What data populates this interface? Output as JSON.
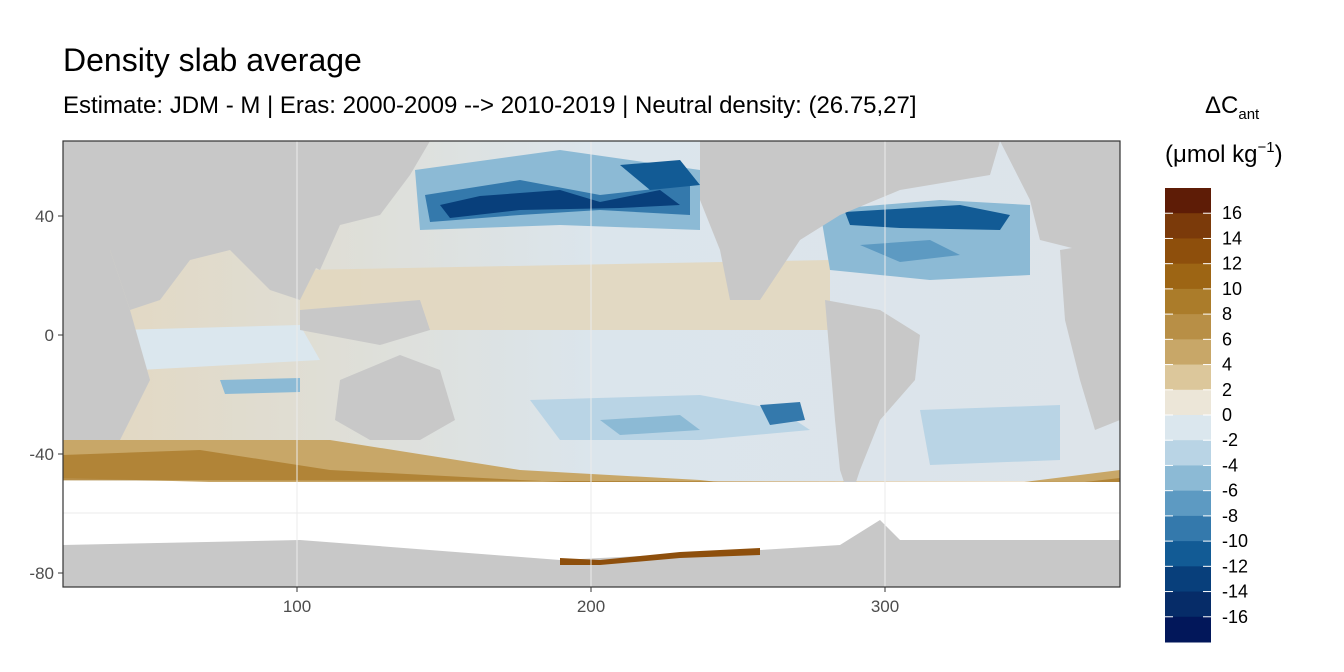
{
  "title": "Density slab average",
  "subtitle": "Estimate: JDM - M | Eras: 2000-2009 --> 2010-2019 | Neutral density: (26.75,27]",
  "axes": {
    "y_ticks": [
      "40",
      "0",
      "-40",
      "-80"
    ],
    "x_ticks": [
      "100",
      "200",
      "300"
    ],
    "x_range": [
      20,
      380
    ],
    "y_range": [
      -85,
      65
    ]
  },
  "colorbar": {
    "title_main": "ΔC",
    "title_sub": "ant",
    "title_units_a": "(μmol kg",
    "title_units_sup": "−1",
    "title_units_b": ")",
    "labels": [
      "16",
      "14",
      "12",
      "10",
      "8",
      "6",
      "4",
      "2",
      "0",
      "-2",
      "-4",
      "-6",
      "-8",
      "-10",
      "-12",
      "-14",
      "-16"
    ],
    "colors": [
      "#5e1c06",
      "#7b3a0a",
      "#8e4f0c",
      "#9d6514",
      "#ab7c2a",
      "#b88f46",
      "#c8a768",
      "#dcc79b",
      "#ece6d8",
      "#dbe7ee",
      "#b9d4e5",
      "#8cbad5",
      "#5d9ac2",
      "#3479ac",
      "#125b95",
      "#083f7b",
      "#062c68",
      "#02175a"
    ]
  },
  "colors": {
    "land": "#c8c8c8",
    "southern_blank": "#ffffff"
  }
}
